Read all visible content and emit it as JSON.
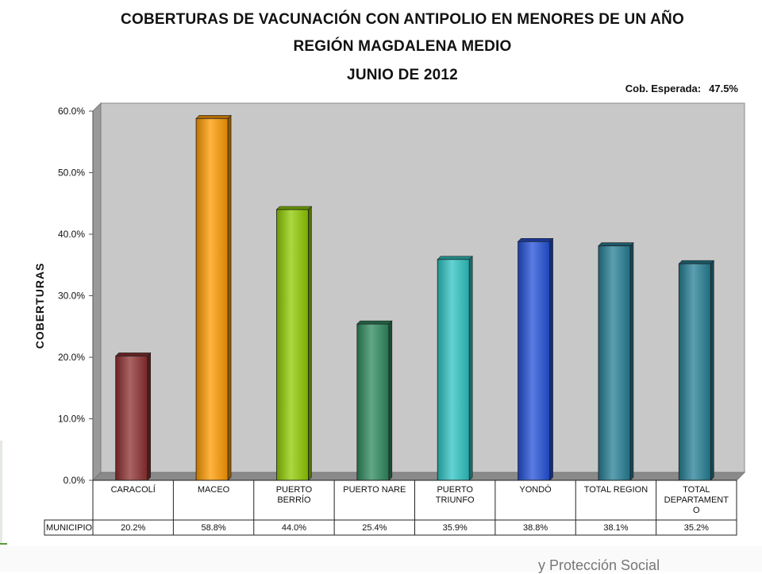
{
  "title_line1": "COBERTURAS DE VACUNACIÓN CON ANTIPOLIO EN MENORES DE UN AÑO",
  "title_line2": "REGIÓN MAGDALENA MEDIO",
  "title_line3": "JUNIO DE 2012",
  "expected_label": "Cob. Esperada:",
  "expected_value": "47.5%",
  "footer_text": "y Protección Social",
  "chart_data": {
    "type": "bar",
    "ylabel": "COBERTURAS",
    "row_label": "MUNICIPIO",
    "ylim": [
      0,
      60
    ],
    "yticks": [
      "0.0%",
      "10.0%",
      "20.0%",
      "30.0%",
      "40.0%",
      "50.0%",
      "60.0%"
    ],
    "categories": [
      [
        "CARACOLÍ"
      ],
      [
        "MACEO"
      ],
      [
        "PUERTO",
        "BERRÍO"
      ],
      [
        "PUERTO NARE"
      ],
      [
        "PUERTO",
        "TRIUNFO"
      ],
      [
        "YONDÓ"
      ],
      [
        "TOTAL REGION"
      ],
      [
        "TOTAL",
        "DEPARTAMENT",
        "O"
      ]
    ],
    "values": [
      20.2,
      58.8,
      44.0,
      25.4,
      35.9,
      38.8,
      38.1,
      35.2
    ],
    "value_labels": [
      "20.2%",
      "58.8%",
      "44.0%",
      "25.4%",
      "35.9%",
      "38.8%",
      "38.1%",
      "35.2%"
    ],
    "colors": [
      "#8e2f2f",
      "#ff9a00",
      "#8fcb00",
      "#2e8a5e",
      "#2fc3c3",
      "#2350d8",
      "#257f95",
      "#257f95"
    ],
    "plot_background": "#c8c8c8",
    "legend": "none",
    "grid": false
  }
}
